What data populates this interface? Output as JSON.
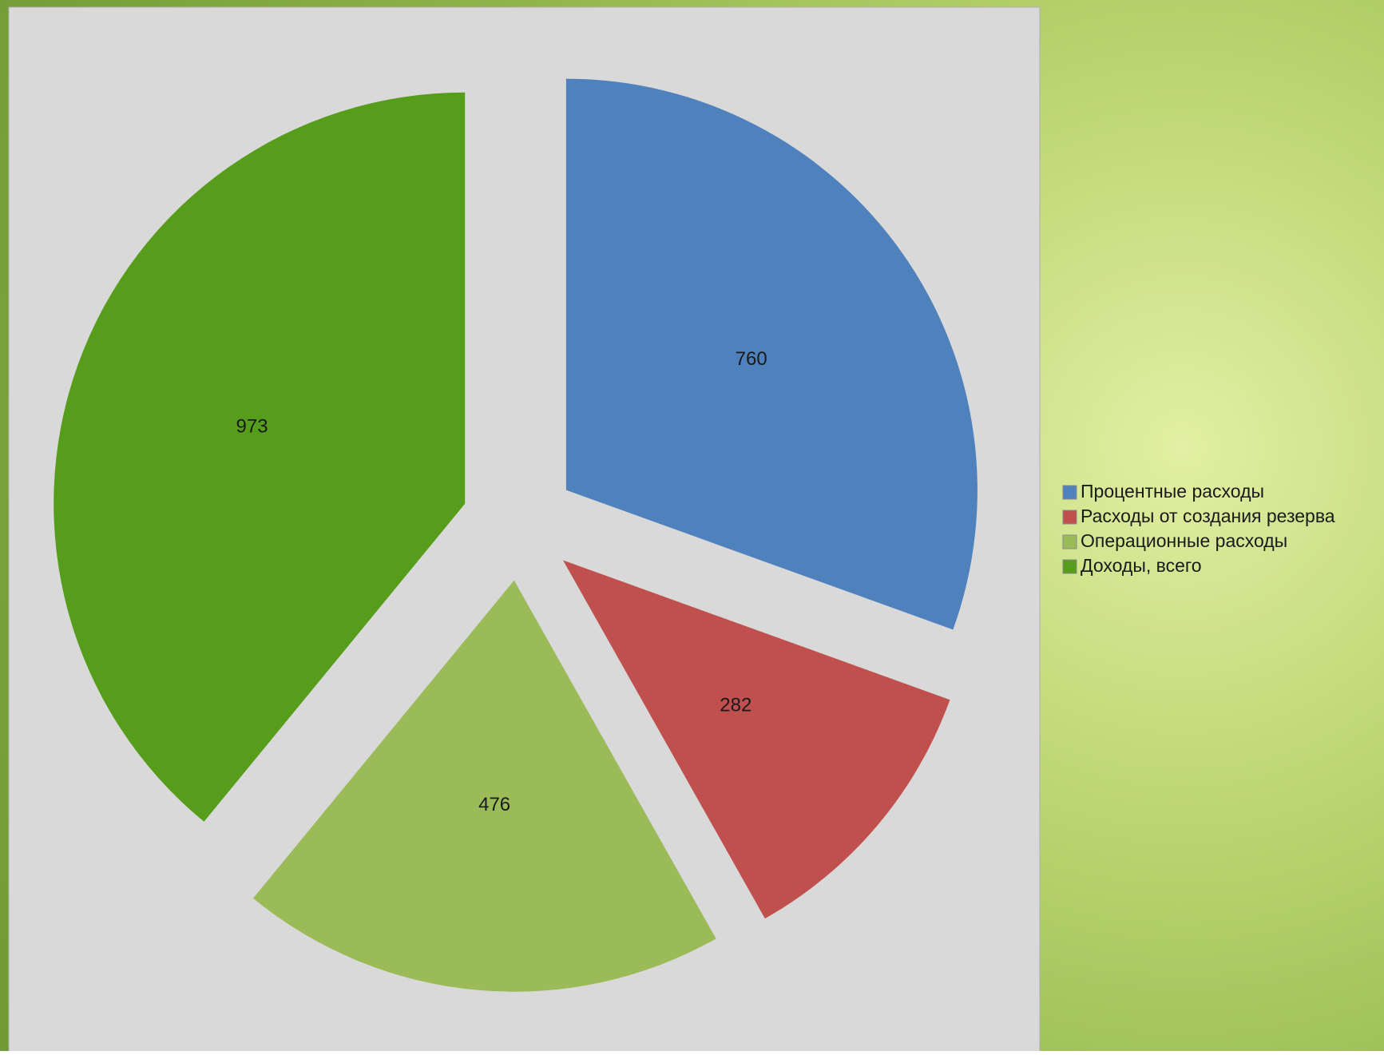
{
  "chart_data": {
    "type": "pie",
    "categories": [
      "Процентные расходы",
      "Расходы от создания резерва",
      "Операционные расходы",
      "Доходы, всего"
    ],
    "values": [
      760,
      282,
      476,
      973
    ],
    "colors": [
      "#4f81bd",
      "#c0504d",
      "#9bbb59",
      "#579d1c"
    ],
    "legend": "right"
  }
}
